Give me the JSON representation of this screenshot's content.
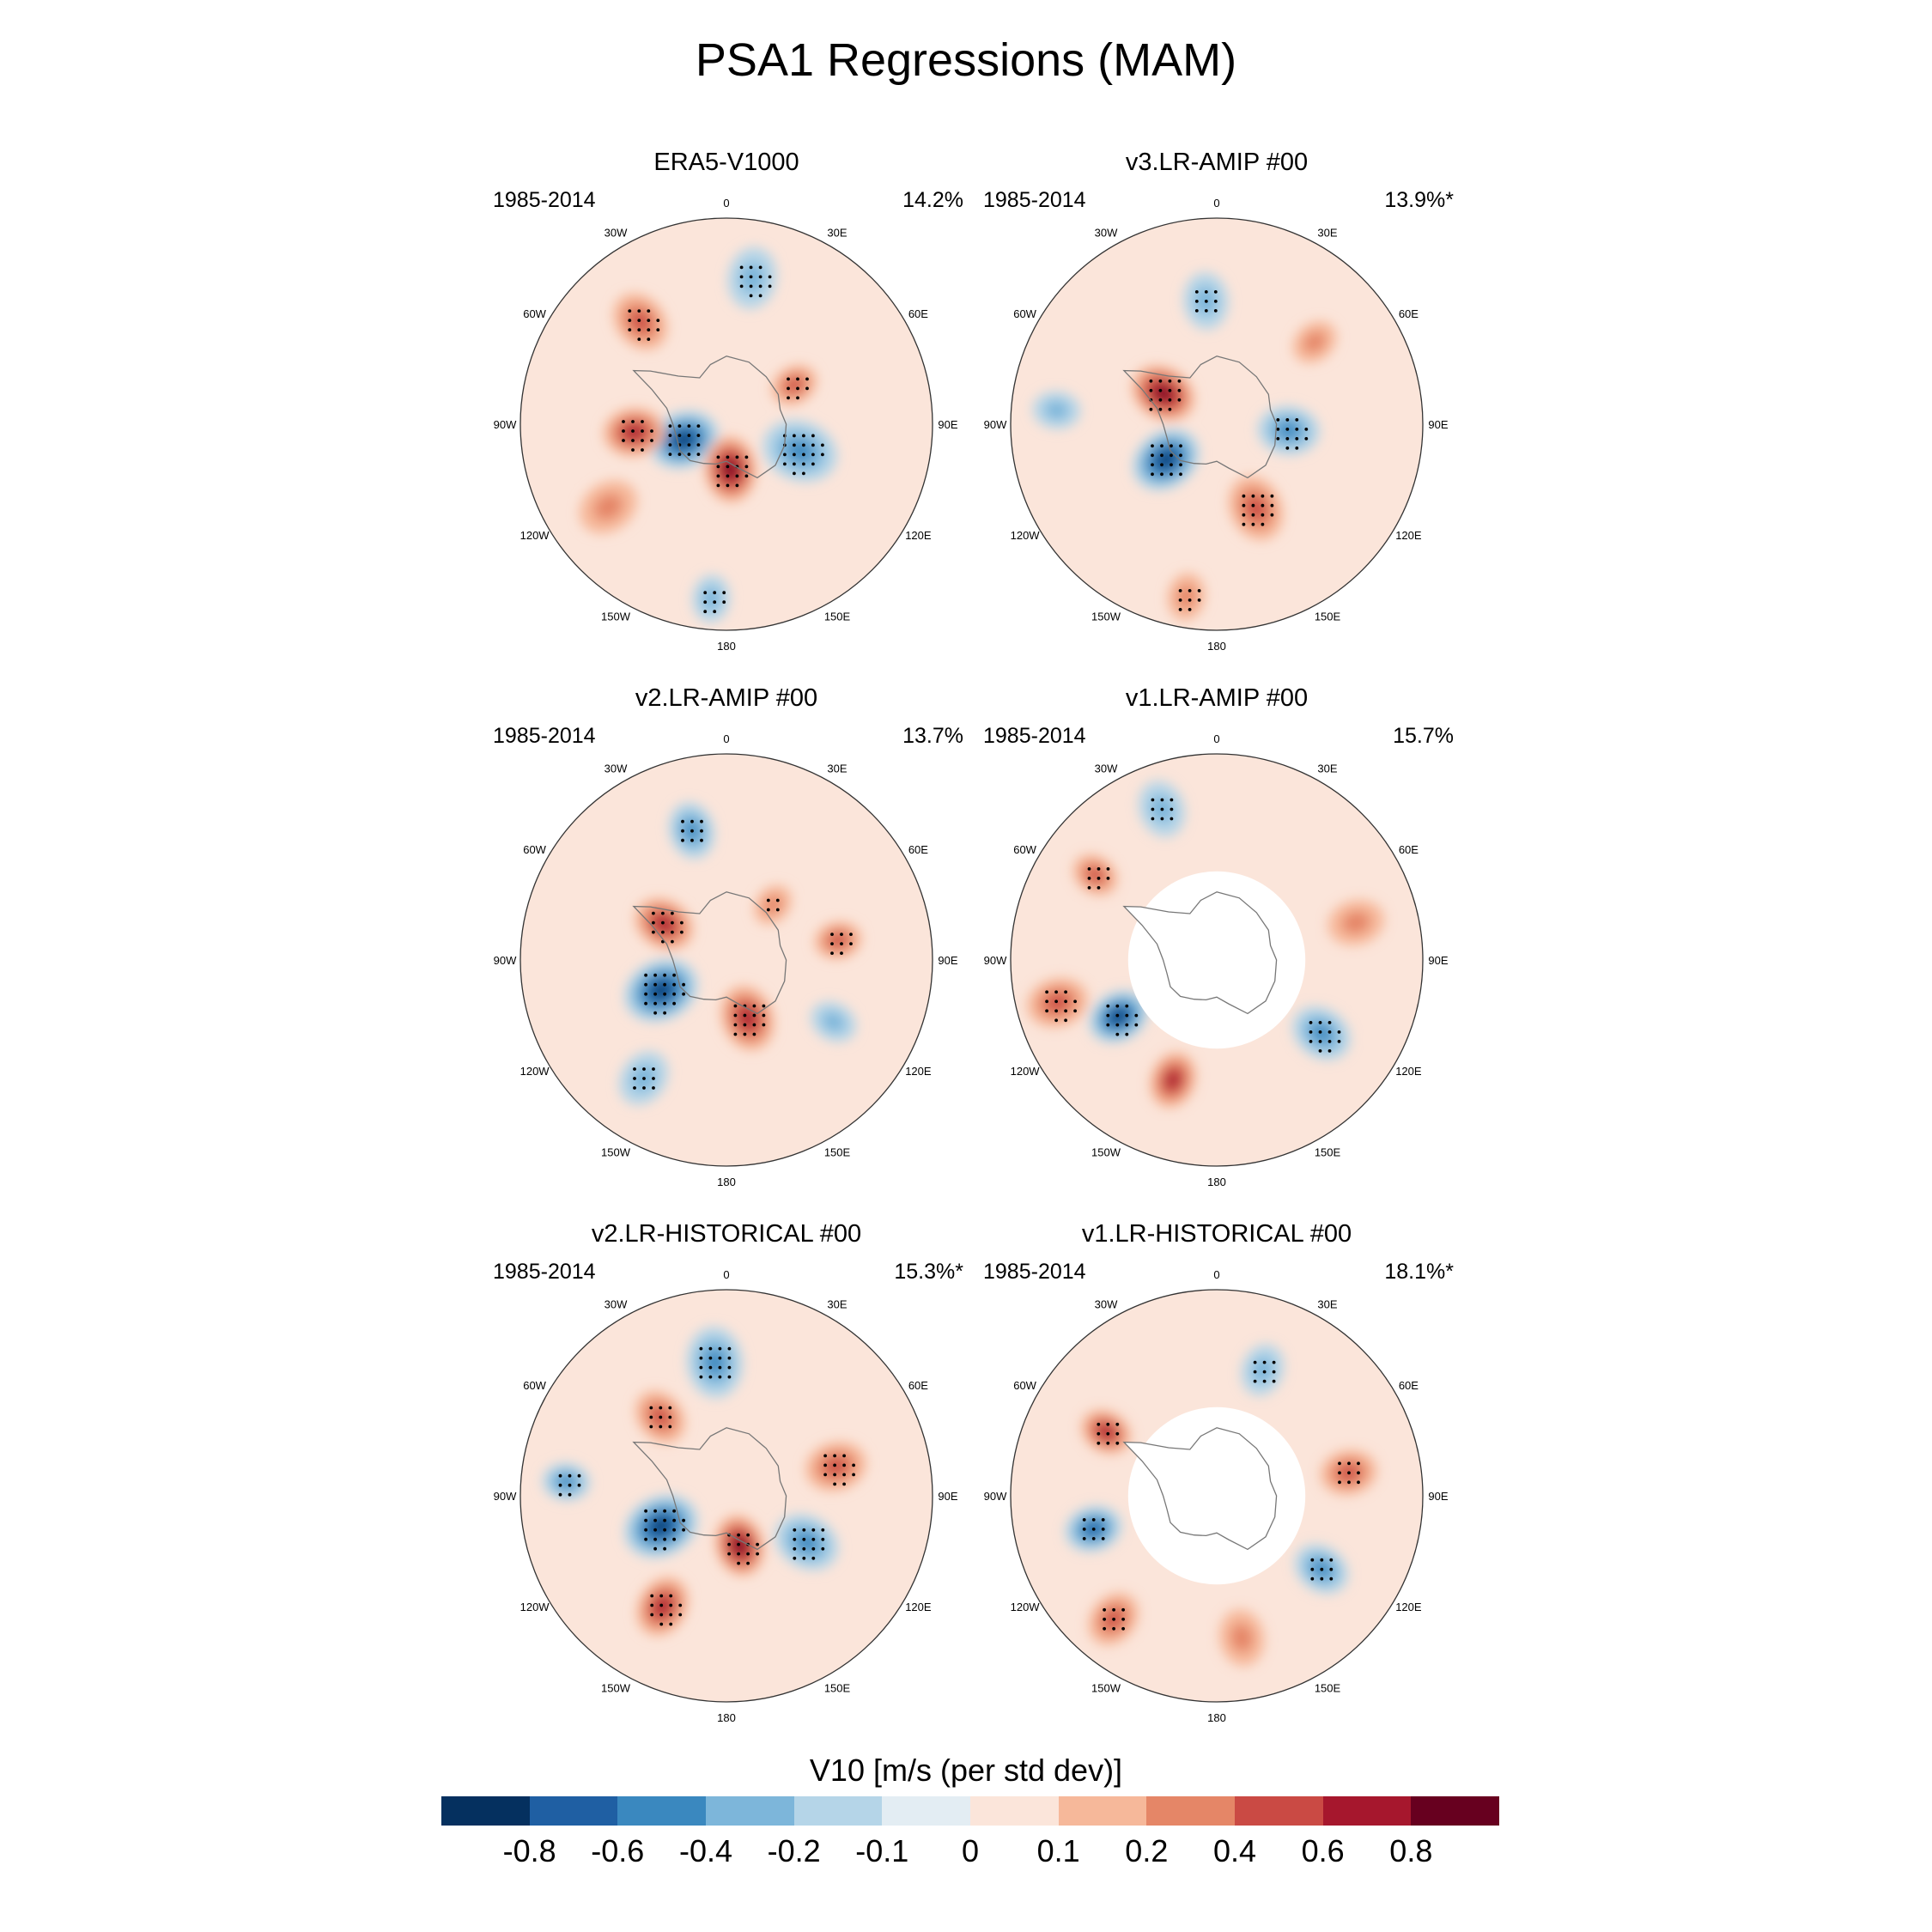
{
  "title": "PSA1 Regressions (MAM)",
  "lon_labels": [
    "0",
    "30E",
    "60E",
    "90E",
    "120E",
    "150E",
    "180",
    "150W",
    "120W",
    "90W",
    "60W",
    "30W"
  ],
  "panels": [
    {
      "title": "ERA5-V1000",
      "period": "1985-2014",
      "percent": "14.2%",
      "masked": false,
      "blobs": [
        {
          "lon": 250,
          "r": 0.22,
          "v": -0.8,
          "size": 0.15,
          "sig": true
        },
        {
          "lon": 265,
          "r": 0.45,
          "v": 0.6,
          "size": 0.13,
          "sig": true
        },
        {
          "lon": 175,
          "r": 0.22,
          "v": 0.8,
          "size": 0.14,
          "sig": true
        },
        {
          "lon": 110,
          "r": 0.38,
          "v": -0.4,
          "size": 0.16,
          "sig": true
        },
        {
          "lon": 60,
          "r": 0.38,
          "v": 0.4,
          "size": 0.1,
          "sig": true
        },
        {
          "lon": 10,
          "r": 0.72,
          "v": -0.3,
          "size": 0.13,
          "sig": true
        },
        {
          "lon": 320,
          "r": 0.65,
          "v": 0.4,
          "size": 0.13,
          "sig": true
        },
        {
          "lon": 235,
          "r": 0.7,
          "v": 0.3,
          "size": 0.13,
          "sig": false
        },
        {
          "lon": 185,
          "r": 0.85,
          "v": -0.3,
          "size": 0.1,
          "sig": true
        }
      ]
    },
    {
      "title": "v3.LR-AMIP  #00",
      "period": "1985-2014",
      "percent": "13.9%*",
      "masked": false,
      "blobs": [
        {
          "lon": 235,
          "r": 0.3,
          "v": -0.8,
          "size": 0.15,
          "sig": true
        },
        {
          "lon": 300,
          "r": 0.3,
          "v": 0.8,
          "size": 0.14,
          "sig": true
        },
        {
          "lon": 155,
          "r": 0.45,
          "v": 0.4,
          "size": 0.14,
          "sig": true
        },
        {
          "lon": 95,
          "r": 0.35,
          "v": -0.4,
          "size": 0.13,
          "sig": true
        },
        {
          "lon": 50,
          "r": 0.62,
          "v": 0.3,
          "size": 0.1,
          "sig": false
        },
        {
          "lon": 355,
          "r": 0.6,
          "v": -0.3,
          "size": 0.12,
          "sig": true
        },
        {
          "lon": 275,
          "r": 0.78,
          "v": -0.3,
          "size": 0.1,
          "sig": false
        },
        {
          "lon": 190,
          "r": 0.85,
          "v": 0.3,
          "size": 0.1,
          "sig": true
        }
      ]
    },
    {
      "title": "v2.LR-AMIP  #00",
      "period": "1985-2014",
      "percent": "13.7%",
      "masked": false,
      "blobs": [
        {
          "lon": 245,
          "r": 0.35,
          "v": -0.8,
          "size": 0.16,
          "sig": true
        },
        {
          "lon": 300,
          "r": 0.35,
          "v": 0.6,
          "size": 0.13,
          "sig": true
        },
        {
          "lon": 160,
          "r": 0.3,
          "v": 0.6,
          "size": 0.14,
          "sig": true
        },
        {
          "lon": 40,
          "r": 0.35,
          "v": 0.3,
          "size": 0.09,
          "sig": true
        },
        {
          "lon": 80,
          "r": 0.55,
          "v": 0.4,
          "size": 0.1,
          "sig": true
        },
        {
          "lon": 345,
          "r": 0.65,
          "v": -0.4,
          "size": 0.12,
          "sig": true
        },
        {
          "lon": 215,
          "r": 0.7,
          "v": -0.3,
          "size": 0.12,
          "sig": true
        },
        {
          "lon": 120,
          "r": 0.6,
          "v": -0.2,
          "size": 0.1,
          "sig": false
        }
      ]
    },
    {
      "title": "v1.LR-AMIP  #00",
      "period": "1985-2014",
      "percent": "15.7%",
      "masked": true,
      "blobs": [
        {
          "lon": 240,
          "r": 0.55,
          "v": -0.8,
          "size": 0.13,
          "sig": true
        },
        {
          "lon": 200,
          "r": 0.62,
          "v": 0.6,
          "size": 0.12,
          "sig": false
        },
        {
          "lon": 255,
          "r": 0.8,
          "v": 0.4,
          "size": 0.13,
          "sig": true
        },
        {
          "lon": 125,
          "r": 0.62,
          "v": -0.4,
          "size": 0.13,
          "sig": true
        },
        {
          "lon": 340,
          "r": 0.78,
          "v": -0.3,
          "size": 0.12,
          "sig": true
        },
        {
          "lon": 75,
          "r": 0.7,
          "v": 0.3,
          "size": 0.12,
          "sig": false
        },
        {
          "lon": 305,
          "r": 0.72,
          "v": 0.4,
          "size": 0.1,
          "sig": true
        }
      ]
    },
    {
      "title": "v2.LR-HISTORICAL  #00",
      "period": "1985-2014",
      "percent": "15.3%*",
      "masked": false,
      "blobs": [
        {
          "lon": 245,
          "r": 0.35,
          "v": -0.8,
          "size": 0.16,
          "sig": true
        },
        {
          "lon": 165,
          "r": 0.25,
          "v": 0.8,
          "size": 0.13,
          "sig": true
        },
        {
          "lon": 210,
          "r": 0.62,
          "v": 0.6,
          "size": 0.13,
          "sig": true
        },
        {
          "lon": 120,
          "r": 0.45,
          "v": -0.4,
          "size": 0.14,
          "sig": true
        },
        {
          "lon": 75,
          "r": 0.55,
          "v": 0.4,
          "size": 0.13,
          "sig": true
        },
        {
          "lon": 355,
          "r": 0.65,
          "v": -0.4,
          "size": 0.15,
          "sig": true
        },
        {
          "lon": 320,
          "r": 0.5,
          "v": 0.4,
          "size": 0.12,
          "sig": true
        },
        {
          "lon": 275,
          "r": 0.78,
          "v": -0.4,
          "size": 0.1,
          "sig": true
        }
      ]
    },
    {
      "title": "v1.LR-HISTORICAL  #00",
      "period": "1985-2014",
      "percent": "18.1%*",
      "masked": true,
      "blobs": [
        {
          "lon": 255,
          "r": 0.62,
          "v": -0.6,
          "size": 0.12,
          "sig": true
        },
        {
          "lon": 300,
          "r": 0.62,
          "v": 0.6,
          "size": 0.11,
          "sig": true
        },
        {
          "lon": 220,
          "r": 0.78,
          "v": 0.4,
          "size": 0.12,
          "sig": true
        },
        {
          "lon": 125,
          "r": 0.62,
          "v": -0.4,
          "size": 0.12,
          "sig": true
        },
        {
          "lon": 80,
          "r": 0.65,
          "v": 0.4,
          "size": 0.12,
          "sig": true
        },
        {
          "lon": 20,
          "r": 0.65,
          "v": -0.3,
          "size": 0.11,
          "sig": true
        },
        {
          "lon": 170,
          "r": 0.7,
          "v": 0.3,
          "size": 0.12,
          "sig": false
        }
      ]
    }
  ],
  "colorbar": {
    "title": "V10 [m/s (per std dev)]",
    "colors": [
      "#05305f",
      "#1f5fa3",
      "#3a88bf",
      "#7db6da",
      "#b5d5e8",
      "#e3edf3",
      "#fbe5da",
      "#f6b89a",
      "#e58667",
      "#ca4a44",
      "#a6172d",
      "#67001f"
    ],
    "labels": [
      "-0.8",
      "-0.6",
      "-0.4",
      "-0.2",
      "-0.1",
      "0",
      "0.1",
      "0.2",
      "0.4",
      "0.6",
      "0.8"
    ]
  }
}
